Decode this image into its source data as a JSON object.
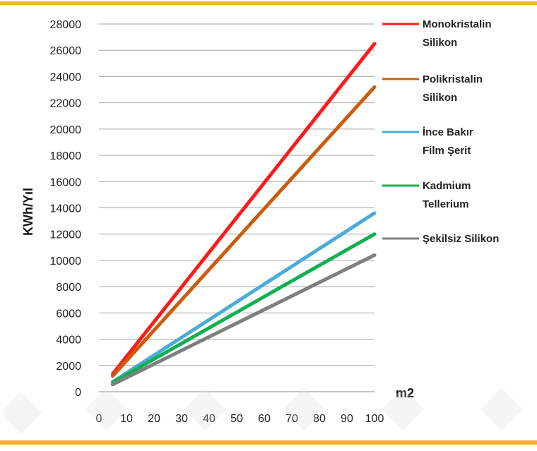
{
  "chart_data": {
    "type": "line",
    "title": "",
    "xlabel": "m2",
    "ylabel": "KWh/Yıl",
    "xlim": [
      0,
      100
    ],
    "ylim": [
      0,
      28000
    ],
    "x_ticks": [
      0,
      10,
      20,
      30,
      40,
      50,
      60,
      70,
      80,
      90,
      100
    ],
    "y_ticks": [
      0,
      2000,
      4000,
      6000,
      8000,
      10000,
      12000,
      14000,
      16000,
      18000,
      20000,
      22000,
      24000,
      26000,
      28000
    ],
    "grid": "horizontal",
    "legend_position": "right",
    "series": [
      {
        "name": "Monokristalin Silikon",
        "name_lines": [
          "Monokristalin",
          "Silikon"
        ],
        "color": "#ff1a1a",
        "x": [
          5,
          100
        ],
        "y": [
          1350,
          26500
        ]
      },
      {
        "name": "Polikristalin Silikon",
        "name_lines": [
          "Polikristalin",
          "Silikon"
        ],
        "color": "#cc5c0c",
        "x": [
          5,
          100
        ],
        "y": [
          1200,
          23200
        ]
      },
      {
        "name": "İnce Bakır Film Şerit",
        "name_lines": [
          "İnce Bakır",
          "Film Şerit"
        ],
        "color": "#4aabd6",
        "x": [
          5,
          100
        ],
        "y": [
          750,
          13600
        ]
      },
      {
        "name": "Kadmium Tellerium",
        "name_lines": [
          "Kadmium",
          "Tellerium"
        ],
        "color": "#10b050",
        "x": [
          5,
          100
        ],
        "y": [
          700,
          12000
        ]
      },
      {
        "name": "Şekilsiz Silikon",
        "name_lines": [
          "Şekilsiz Silikon"
        ],
        "color": "#7f7f7f",
        "x": [
          5,
          100
        ],
        "y": [
          550,
          10400
        ]
      }
    ]
  }
}
